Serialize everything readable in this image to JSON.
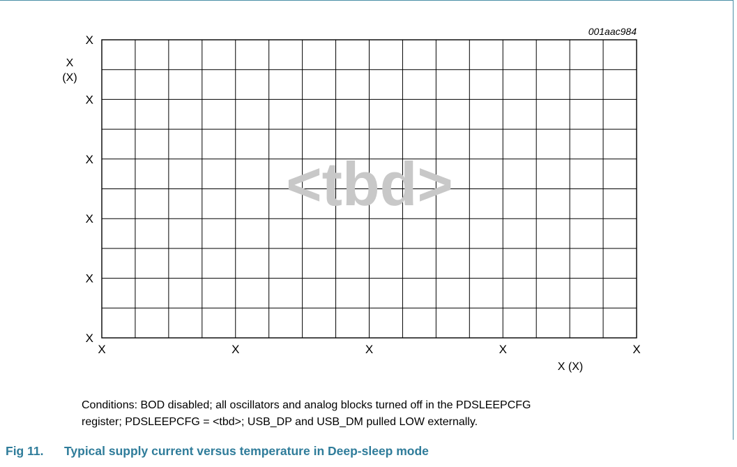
{
  "chart_data": {
    "type": "line",
    "figure_id": "001aac984",
    "placeholder": "<tbd>",
    "grid": true,
    "grid_columns": 16,
    "grid_rows": 10,
    "x_ticks": [
      "X",
      "X",
      "X",
      "X",
      "X"
    ],
    "y_ticks": [
      "X",
      "X",
      "X",
      "X",
      "X",
      "X"
    ],
    "xlabel": "X (X)",
    "ylabel": [
      "X",
      "(X)"
    ],
    "series": []
  },
  "conditions": {
    "line1": "Conditions: BOD disabled; all oscillators and analog blocks turned off in the PDSLEEPCFG",
    "line2": "register; PDSLEEPCFG = <tbd>; USB_DP and USB_DM pulled LOW externally."
  },
  "caption": {
    "number": "Fig 11.",
    "title": "Typical supply current versus temperature in Deep-sleep mode"
  },
  "colors": {
    "frame": "#4a8fa6",
    "caption": "#2f7c9a",
    "watermark": "#c8c8c8",
    "grid": "#000000"
  }
}
